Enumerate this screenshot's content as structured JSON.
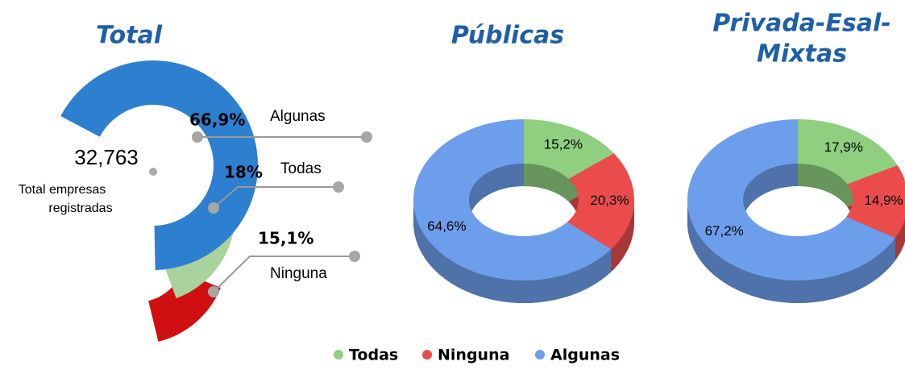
{
  "chart_data": [
    {
      "type": "radial",
      "title": "Total",
      "center_value": "32,763",
      "center_label": [
        "Total empresas",
        "registradas"
      ],
      "categories": [
        "Algunas",
        "Todas",
        "Ninguna"
      ],
      "values": [
        66.9,
        18,
        15.1
      ],
      "value_labels": [
        "66,9%",
        "18%",
        "15,1%"
      ],
      "colors": [
        "#2d7fd0",
        "#a9d29c",
        "#d01010"
      ]
    },
    {
      "type": "donut3d",
      "title": "Públicas",
      "categories": [
        "Todas",
        "Ninguna",
        "Algunas"
      ],
      "values": [
        15.2,
        20.3,
        64.6
      ],
      "value_labels": [
        "15,2%",
        "20,3%",
        "64,6%"
      ],
      "colors": [
        "#8fcf7f",
        "#ea4c4c",
        "#6d9eeb"
      ]
    },
    {
      "type": "donut3d",
      "title": [
        "Privada-Esal-",
        "Mixtas"
      ],
      "categories": [
        "Todas",
        "Ninguna",
        "Algunas"
      ],
      "values": [
        17.9,
        14.9,
        67.2
      ],
      "value_labels": [
        "17,9%",
        "14,9%",
        "67,2%"
      ],
      "colors": [
        "#8fcf7f",
        "#ea4c4c",
        "#6d9eeb"
      ]
    }
  ]
}
